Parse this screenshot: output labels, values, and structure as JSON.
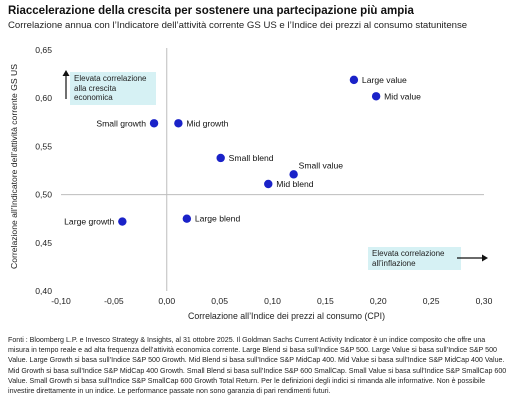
{
  "title": "Riaccelerazione della crescita per sostenere una partecipazione più ampia",
  "subtitle": "Correlazione annua con l’Indicatore dell’attività corrente GS US e l’Indice dei prezzi al consumo statunitense",
  "annotations": {
    "high_corr_growth": "Elevata correlazione alla crescita economica",
    "high_corr_inflation": "Elevata correlazione all’inflazione"
  },
  "footer": "Fonti : Bloomberg L.P. e Invesco Strategy & Insights, al 31 ottobre 2025. Il Goldman Sachs Current Activity Indicator è un indice composito che offre una misura in tempo reale e ad alta frequenza dell’attività economica corrente. Large Blend si basa sull’Indice S&P 500. Large Value si basa sull’Indice S&P 500 Value. Large Growth si basa sull’Indice S&P 500 Growth. Mid Blend si basa sull’Indice S&P MidCap 400. Mid Value si basa sull’Indice S&P MidCap 400 Value. Mid Growth si basa sull’Indice S&P MidCap 400 Growth. Small Blend si basa sull’Indice S&P 600 SmallCap. Small Value si basa sull’Indice S&P SmallCap 600 Value. Small Growth si basa sull’Indice S&P SmallCap 600 Growth Total Return. Per le definizioni degli indici si rimanda alle informative. Non è possibile investire direttamente in un indice. Le performance passate non sono garanzia di pari rendimenti futuri.",
  "colors": {
    "point": "#1a22c8",
    "annotation_bg": "#d6f1f4",
    "axis_line": "#bdbdbd"
  },
  "chart_data": {
    "type": "scatter",
    "xlabel": "Correlazione all’Indice dei prezzi al consumo (CPI)",
    "ylabel": "Correlazione all’Indicatore dell’attività corrente GS US",
    "xlim": [
      -0.1,
      0.3
    ],
    "ylim": [
      0.4,
      0.65
    ],
    "x_ticks": [
      -0.1,
      -0.05,
      0.0,
      0.05,
      0.1,
      0.15,
      0.2,
      0.25,
      0.3
    ],
    "x_tick_labels": [
      "-0,10",
      "-0,05",
      "0,00",
      "0,05",
      "0,10",
      "0,15",
      "0,20",
      "0,25",
      "0,30"
    ],
    "y_ticks": [
      0.4,
      0.45,
      0.5,
      0.55,
      0.6,
      0.65
    ],
    "y_tick_labels": [
      "0,40",
      "0,45",
      "0,50",
      "0,55",
      "0,60",
      "0,65"
    ],
    "reference_lines": {
      "x": 0.0,
      "y": 0.5
    },
    "grid": false,
    "points": [
      {
        "label": "Large value",
        "x": 0.177,
        "y": 0.619,
        "label_side": "right"
      },
      {
        "label": "Mid value",
        "x": 0.198,
        "y": 0.602,
        "label_side": "right"
      },
      {
        "label": "Small growth",
        "x": -0.012,
        "y": 0.574,
        "label_side": "left"
      },
      {
        "label": "Mid growth",
        "x": 0.011,
        "y": 0.574,
        "label_side": "right"
      },
      {
        "label": "Small blend",
        "x": 0.051,
        "y": 0.538,
        "label_side": "right"
      },
      {
        "label": "Small value",
        "x": 0.12,
        "y": 0.521,
        "label_side": "right-up"
      },
      {
        "label": "Mid blend",
        "x": 0.096,
        "y": 0.511,
        "label_side": "right"
      },
      {
        "label": "Large growth",
        "x": -0.042,
        "y": 0.472,
        "label_side": "left"
      },
      {
        "label": "Large blend",
        "x": 0.019,
        "y": 0.475,
        "label_side": "right"
      }
    ]
  }
}
